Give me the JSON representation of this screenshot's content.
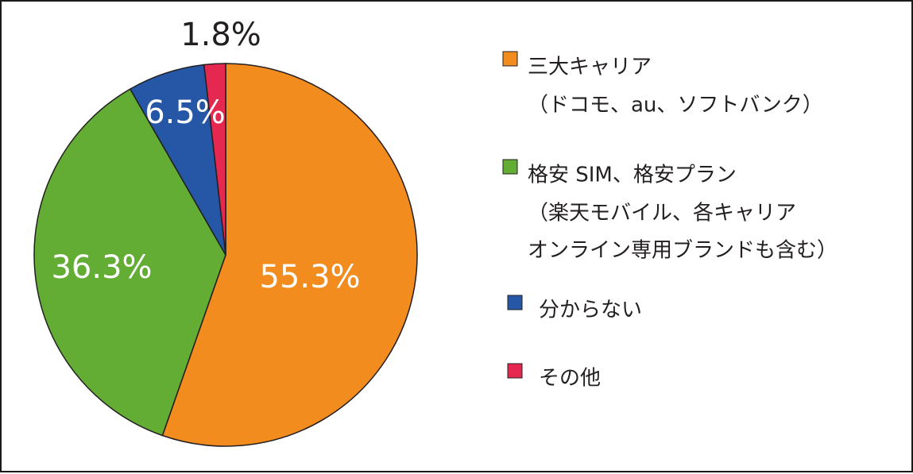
{
  "chart_data": {
    "type": "pie",
    "start_angle_deg": 0,
    "direction": "clockwise",
    "slices": [
      {
        "label_lines": [
          "三大キャリア",
          "（ドコモ、au、ソフトバンク）"
        ],
        "value": 55.3,
        "display": "55.3%",
        "color": "#f28c1e",
        "label_color": "#ffffff"
      },
      {
        "label_lines": [
          "格安 SIM、格安プラン",
          "（楽天モバイル、各キャリア",
          "オンライン専用ブランドも含む）"
        ],
        "value": 36.3,
        "display": "36.3%",
        "color": "#63ad34",
        "label_color": "#ffffff"
      },
      {
        "label_lines": [
          "分からない"
        ],
        "value": 6.5,
        "display": "6.5%",
        "color": "#2657a6",
        "label_color": "#ffffff"
      },
      {
        "label_lines": [
          "その他"
        ],
        "value": 1.8,
        "display": "1.8%",
        "color": "#e5284f",
        "label_color": "#231f20"
      }
    ],
    "legend_position": "right"
  }
}
